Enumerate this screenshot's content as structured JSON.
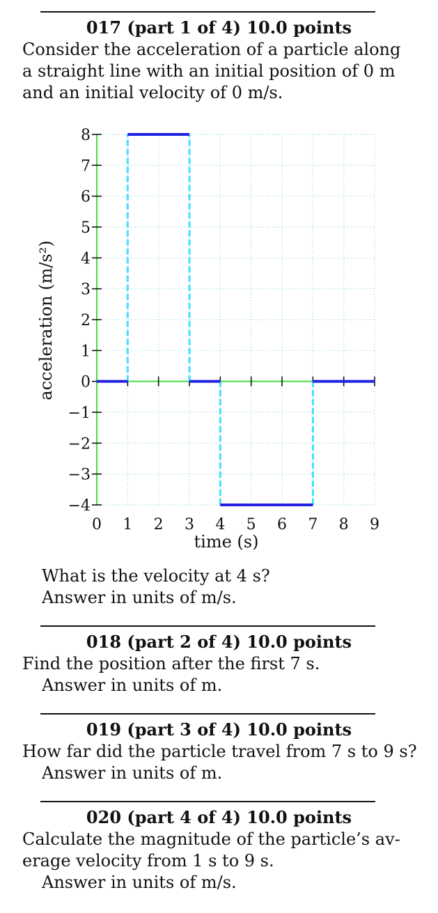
{
  "problems": [
    {
      "heading": "017 (part 1 of 4) 10.0 points",
      "text_lines": [
        "Consider the acceleration of a particle along",
        "a straight line with an initial position of 0 m",
        "and an initial velocity of 0 m/s."
      ]
    },
    {
      "heading": "018 (part 2 of 4) 10.0 points",
      "text_lines": [
        "Find the position after the first 7 s."
      ]
    },
    {
      "heading": "019 (part 3 of 4) 10.0 points",
      "text_lines": [
        "How far did the particle travel from 7 s to 9 s?"
      ]
    },
    {
      "heading": "020 (part 4 of 4) 10.0 points",
      "text_lines": [
        "Calculate the magnitude of the particle’s av-",
        "erage velocity from 1 s to 9 s."
      ]
    }
  ],
  "question1": {
    "question": "What is the velocity at 4 s?",
    "answer_units": "Answer in units of  m/s."
  },
  "answer_units": {
    "p2": "Answer in units of  m.",
    "p3": "Answer in units of  m.",
    "p4": "Answer in units of  m/s."
  },
  "chart_data": {
    "type": "line",
    "xlabel": "time (s)",
    "ylabel": "acceleration (m/s²)",
    "xlim": [
      0,
      9
    ],
    "ylim": [
      -4,
      8
    ],
    "x_ticks": [
      0,
      1,
      2,
      3,
      4,
      5,
      6,
      7,
      8,
      9
    ],
    "y_ticks": [
      -4,
      -3,
      -2,
      -1,
      0,
      1,
      2,
      3,
      4,
      5,
      6,
      7,
      8
    ],
    "x_tick_labels": [
      "0",
      "1",
      "2",
      "3",
      "4",
      "5",
      "6",
      "7",
      "8",
      "9"
    ],
    "y_tick_labels": [
      "−4",
      "−3",
      "−2",
      "−1",
      "0",
      "1",
      "2",
      "3",
      "4",
      "5",
      "6",
      "7",
      "8"
    ],
    "grid": true,
    "segments": [
      {
        "x": [
          0,
          1
        ],
        "y": [
          0,
          0
        ]
      },
      {
        "x": [
          1,
          3
        ],
        "y": [
          8,
          8
        ]
      },
      {
        "x": [
          3,
          4
        ],
        "y": [
          0,
          0
        ]
      },
      {
        "x": [
          4,
          7
        ],
        "y": [
          -4,
          -4
        ]
      },
      {
        "x": [
          7,
          9
        ],
        "y": [
          0,
          0
        ]
      }
    ],
    "transitions": [
      {
        "x": 1,
        "y": [
          0,
          8
        ]
      },
      {
        "x": 3,
        "y": [
          0,
          8
        ]
      },
      {
        "x": 4,
        "y": [
          -4,
          0
        ]
      },
      {
        "x": 7,
        "y": [
          -4,
          0
        ]
      }
    ],
    "colors": {
      "data": "#2020e0",
      "transition": "#40e0ff",
      "axis": "#44dd44",
      "grid": "#a8dcec"
    }
  }
}
